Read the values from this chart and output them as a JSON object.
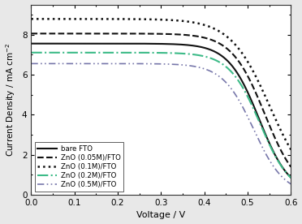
{
  "title": "",
  "xlabel": "Voltage / V",
  "ylabel": "Current Density / mA cm$^{-2}$",
  "xlim": [
    0.0,
    0.6
  ],
  "ylim": [
    0.0,
    9.5
  ],
  "yticks": [
    0,
    2,
    4,
    6,
    8
  ],
  "xticks": [
    0.0,
    0.1,
    0.2,
    0.3,
    0.4,
    0.5,
    0.6
  ],
  "series": [
    {
      "label": "bare FTO",
      "color": "#111111",
      "linestyle": "solid",
      "linewidth": 1.5,
      "jsc": 7.55,
      "voc": 0.535,
      "alpha": 28
    },
    {
      "label": "ZnO (0.05M)/FTO",
      "color": "#111111",
      "linestyle": "dashed",
      "linewidth": 1.5,
      "jsc": 8.05,
      "voc": 0.548,
      "alpha": 26
    },
    {
      "label": "ZnO (0.1M)/FTO",
      "color": "#111111",
      "linestyle": "dotted",
      "linewidth": 1.8,
      "jsc": 8.78,
      "voc": 0.56,
      "alpha": 22
    },
    {
      "label": "ZnO (0.2M)/FTO",
      "color": "#3dbb88",
      "linestyle": "dashdot",
      "linewidth": 1.5,
      "jsc": 7.1,
      "voc": 0.537,
      "alpha": 28
    },
    {
      "label": "ZnO (0.5M)/FTO",
      "color": "#7777aa",
      "linestyle": "dashdot",
      "linewidth": 1.2,
      "jsc": 6.55,
      "voc": 0.522,
      "alpha": 28
    }
  ],
  "legend_loc": "lower left",
  "background_color": "#e8e8e8",
  "plot_bg_color": "#ffffff"
}
